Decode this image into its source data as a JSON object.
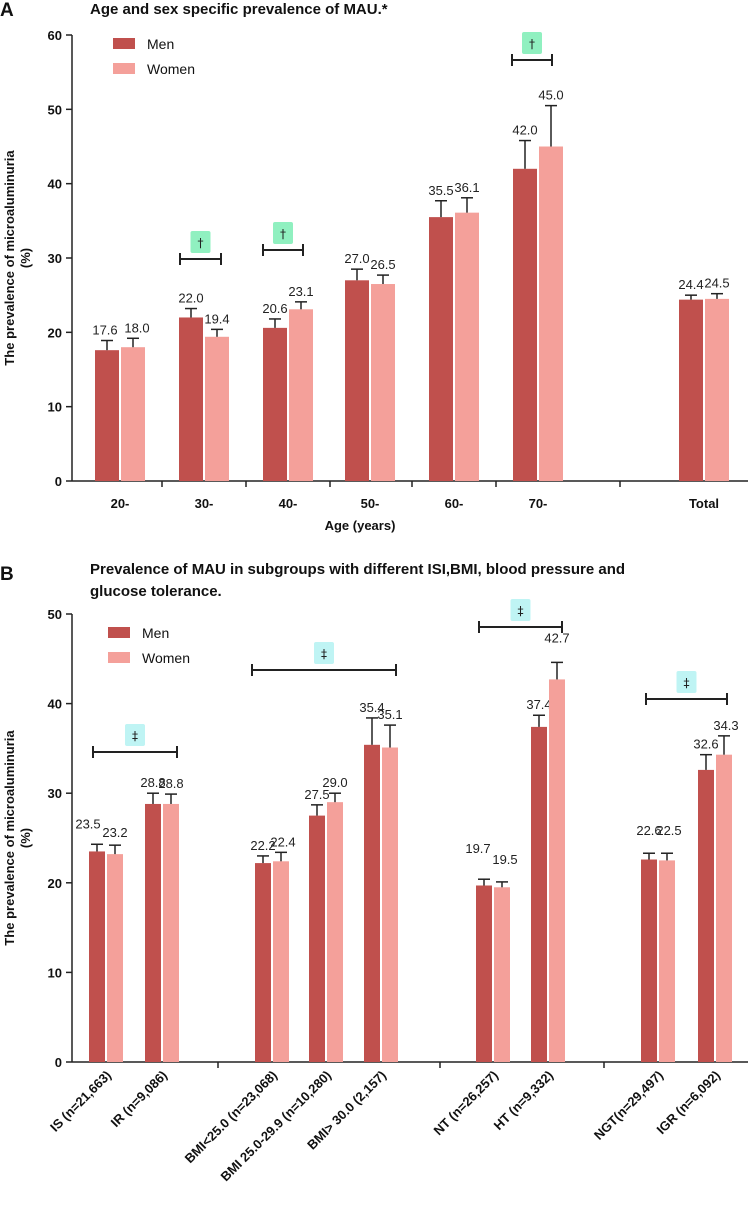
{
  "colors": {
    "men": "#c0504d",
    "women": "#f4a09a",
    "sig_green": "#90f0c0",
    "sig_cyan": "#bff4f4"
  },
  "chart_data": [
    {
      "type": "bar",
      "panel_label": "A",
      "title": "Age and sex specific prevalence of MAU.*",
      "xlabel": "Age (years)",
      "ylabel": "The prevalence of microaluminuria (%)",
      "ylabel_lines": [
        "The prevalence of microaluminuria",
        "(%)"
      ],
      "ylim": [
        0,
        60
      ],
      "yticks": [
        "0",
        "10",
        "20",
        "30",
        "40",
        "50",
        "60"
      ],
      "legend_position": "top-left",
      "categories": [
        "20-",
        "30-",
        "40-",
        "50-",
        "60-",
        "70-",
        "Total"
      ],
      "series": [
        {
          "name": "Men",
          "values": [
            17.6,
            22.0,
            20.6,
            27.0,
            35.5,
            42.0,
            24.4
          ],
          "labels": [
            "17.6",
            "22.0",
            "20.6",
            "27.0",
            "35.5",
            "42.0",
            "24.4"
          ],
          "err": [
            1.3,
            1.2,
            1.2,
            1.5,
            2.2,
            3.8,
            0.6
          ]
        },
        {
          "name": "Women",
          "values": [
            18.0,
            19.4,
            23.1,
            26.5,
            36.1,
            45.0,
            24.5
          ],
          "labels": [
            "18.0",
            "19.4",
            "23.1",
            "26.5",
            "36.1",
            "45.0",
            "24.5"
          ],
          "err": [
            1.2,
            1.0,
            1.0,
            1.2,
            2.0,
            5.5,
            0.7
          ]
        }
      ],
      "annotations": [
        {
          "symbol": "†",
          "category_index": 1
        },
        {
          "symbol": "†",
          "category_index": 2
        },
        {
          "symbol": "†",
          "category_index": 5
        }
      ]
    },
    {
      "type": "bar",
      "panel_label": "B",
      "title_lines": [
        "Prevalence of MAU in subgroups with different ISI,BMI, blood pressure and",
        "glucose tolerance."
      ],
      "xlabel": "",
      "ylabel": "The prevalence of microaluminuria (%)",
      "ylabel_lines": [
        "The prevalence of microaluminuria",
        "(%)"
      ],
      "ylim": [
        0,
        50
      ],
      "yticks": [
        "0",
        "10",
        "20",
        "30",
        "40",
        "50"
      ],
      "legend_position": "top-left",
      "categories": [
        "IS (n=21,663)",
        "IR (n=9,086)",
        "BMI<25.0 (n=23,068)",
        "BMI 25.0-29.9 (n=10,280)",
        "BMI> 30.0 (2,157)",
        "NT (n=26,257)",
        "HT (n=9,332)",
        "NGT(n=29,497)",
        "IGR (n=6,092)"
      ],
      "series": [
        {
          "name": "Men",
          "values": [
            23.5,
            28.8,
            22.2,
            27.5,
            35.4,
            19.7,
            37.4,
            22.6,
            32.6
          ],
          "labels": [
            "23.5",
            "28.8",
            "22.2",
            "27.5",
            "35.4",
            "19.7",
            "37.4",
            "22.6",
            "32.6"
          ],
          "err": [
            0.8,
            1.2,
            0.8,
            1.2,
            3.0,
            0.7,
            1.3,
            0.7,
            1.7
          ]
        },
        {
          "name": "Women",
          "values": [
            23.2,
            28.8,
            22.4,
            29.0,
            35.1,
            19.5,
            42.7,
            22.5,
            34.3
          ],
          "labels": [
            "23.2",
            "28.8",
            "22.4",
            "29.0",
            "35.1",
            "19.5",
            "42.7",
            "22.5",
            "34.3"
          ],
          "err": [
            1.0,
            1.1,
            1.0,
            1.0,
            2.5,
            0.6,
            1.9,
            0.8,
            2.1
          ]
        }
      ],
      "annotations": [
        {
          "symbol": "‡",
          "from_index": 0,
          "to_index": 1
        },
        {
          "symbol": "‡",
          "from_index": 2,
          "to_index": 4
        },
        {
          "symbol": "‡",
          "from_index": 5,
          "to_index": 6
        },
        {
          "symbol": "‡",
          "from_index": 7,
          "to_index": 8
        }
      ]
    }
  ]
}
